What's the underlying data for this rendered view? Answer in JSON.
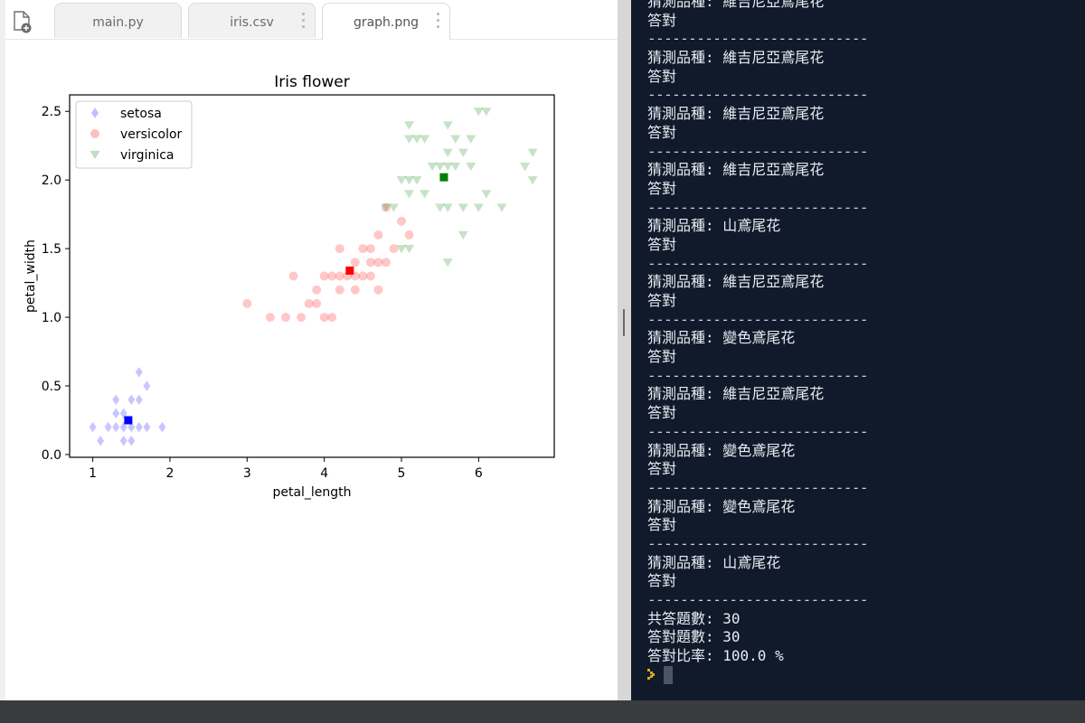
{
  "tabs": [
    {
      "label": "main.py",
      "active": false
    },
    {
      "label": "iris.csv",
      "active": false
    },
    {
      "label": "graph.png",
      "active": true
    }
  ],
  "chart_data": {
    "type": "scatter",
    "title": "Iris flower",
    "xlabel": "petal_length",
    "ylabel": "petal_width",
    "xlim": [
      0.7,
      6.98
    ],
    "ylim": [
      -0.02,
      2.62
    ],
    "xticks": [
      1,
      2,
      3,
      4,
      5,
      6
    ],
    "yticks": [
      0.0,
      0.5,
      1.0,
      1.5,
      2.0,
      2.5
    ],
    "xtick_labels": [
      "1",
      "2",
      "3",
      "4",
      "5",
      "6"
    ],
    "ytick_labels": [
      "0.0",
      "0.5",
      "1.0",
      "1.5",
      "2.0",
      "2.5"
    ],
    "grid": false,
    "legend_position": "upper-left",
    "series": [
      {
        "name": "setosa",
        "marker": "diamond",
        "color": "#0000ff",
        "points": [
          [
            1.0,
            0.2
          ],
          [
            1.1,
            0.1
          ],
          [
            1.2,
            0.2
          ],
          [
            1.3,
            0.2
          ],
          [
            1.3,
            0.3
          ],
          [
            1.3,
            0.4
          ],
          [
            1.4,
            0.2
          ],
          [
            1.4,
            0.1
          ],
          [
            1.4,
            0.3
          ],
          [
            1.5,
            0.2
          ],
          [
            1.5,
            0.1
          ],
          [
            1.5,
            0.4
          ],
          [
            1.6,
            0.2
          ],
          [
            1.6,
            0.4
          ],
          [
            1.6,
            0.6
          ],
          [
            1.7,
            0.2
          ],
          [
            1.7,
            0.5
          ],
          [
            1.9,
            0.2
          ]
        ],
        "mean": [
          1.46,
          0.25
        ]
      },
      {
        "name": "versicolor",
        "marker": "circle",
        "color": "#ff0000",
        "points": [
          [
            3.0,
            1.1
          ],
          [
            3.3,
            1.0
          ],
          [
            3.5,
            1.0
          ],
          [
            3.6,
            1.3
          ],
          [
            3.7,
            1.0
          ],
          [
            3.8,
            1.1
          ],
          [
            3.9,
            1.1
          ],
          [
            3.9,
            1.2
          ],
          [
            4.0,
            1.0
          ],
          [
            4.0,
            1.3
          ],
          [
            4.1,
            1.0
          ],
          [
            4.1,
            1.3
          ],
          [
            4.2,
            1.2
          ],
          [
            4.2,
            1.3
          ],
          [
            4.2,
            1.5
          ],
          [
            4.3,
            1.3
          ],
          [
            4.4,
            1.2
          ],
          [
            4.4,
            1.3
          ],
          [
            4.4,
            1.4
          ],
          [
            4.5,
            1.5
          ],
          [
            4.5,
            1.3
          ],
          [
            4.6,
            1.3
          ],
          [
            4.6,
            1.4
          ],
          [
            4.6,
            1.5
          ],
          [
            4.7,
            1.2
          ],
          [
            4.7,
            1.4
          ],
          [
            4.7,
            1.6
          ],
          [
            4.8,
            1.4
          ],
          [
            4.8,
            1.8
          ],
          [
            4.9,
            1.5
          ],
          [
            5.0,
            1.7
          ],
          [
            5.1,
            1.6
          ]
        ],
        "mean": [
          4.33,
          1.34
        ]
      },
      {
        "name": "virginica",
        "marker": "triangle-down",
        "color": "#008000",
        "points": [
          [
            4.8,
            1.8
          ],
          [
            4.9,
            1.8
          ],
          [
            5.0,
            1.5
          ],
          [
            5.0,
            2.0
          ],
          [
            5.1,
            1.5
          ],
          [
            5.1,
            1.9
          ],
          [
            5.1,
            2.0
          ],
          [
            5.1,
            2.3
          ],
          [
            5.1,
            2.4
          ],
          [
            5.2,
            2.0
          ],
          [
            5.2,
            2.3
          ],
          [
            5.3,
            1.9
          ],
          [
            5.3,
            2.3
          ],
          [
            5.4,
            2.1
          ],
          [
            5.5,
            1.8
          ],
          [
            5.5,
            2.1
          ],
          [
            5.6,
            1.4
          ],
          [
            5.6,
            1.8
          ],
          [
            5.6,
            2.1
          ],
          [
            5.6,
            2.2
          ],
          [
            5.6,
            2.4
          ],
          [
            5.7,
            2.1
          ],
          [
            5.7,
            2.3
          ],
          [
            5.8,
            1.6
          ],
          [
            5.8,
            1.8
          ],
          [
            5.8,
            2.2
          ],
          [
            5.9,
            2.1
          ],
          [
            5.9,
            2.3
          ],
          [
            6.0,
            1.8
          ],
          [
            6.0,
            2.5
          ],
          [
            6.1,
            1.9
          ],
          [
            6.1,
            2.5
          ],
          [
            6.3,
            1.8
          ],
          [
            6.6,
            2.1
          ],
          [
            6.7,
            2.2
          ],
          [
            6.7,
            2.0
          ]
        ],
        "mean": [
          5.55,
          2.02
        ]
      }
    ]
  },
  "terminal": {
    "lines": [
      "猜測品種: 維吉尼亞鳶尾花",
      "答對",
      "---------------------------",
      "猜測品種: 維吉尼亞鳶尾花",
      "答對",
      "---------------------------",
      "猜測品種: 維吉尼亞鳶尾花",
      "答對",
      "---------------------------",
      "猜測品種: 維吉尼亞鳶尾花",
      "答對",
      "---------------------------",
      "猜測品種: 山鳶尾花",
      "答對",
      "---------------------------",
      "猜測品種: 維吉尼亞鳶尾花",
      "答對",
      "---------------------------",
      "猜測品種: 變色鳶尾花",
      "答對",
      "---------------------------",
      "猜測品種: 維吉尼亞鳶尾花",
      "答對",
      "---------------------------",
      "猜測品種: 變色鳶尾花",
      "答對",
      "---------------------------",
      "猜測品種: 變色鳶尾花",
      "答對",
      "---------------------------",
      "猜測品種: 山鳶尾花",
      "答對",
      "---------------------------",
      "共答題數: 30",
      "答對題數: 30",
      "答對比率: 100.0 %"
    ]
  },
  "colors": {
    "terminal_bg": "#101a2b",
    "terminal_text": "#e9edf2",
    "prompt": "#d9b012",
    "cursor": "#4c5566",
    "splitter": "#d7d7d7",
    "bottom_bar": "#3a3b3d"
  }
}
